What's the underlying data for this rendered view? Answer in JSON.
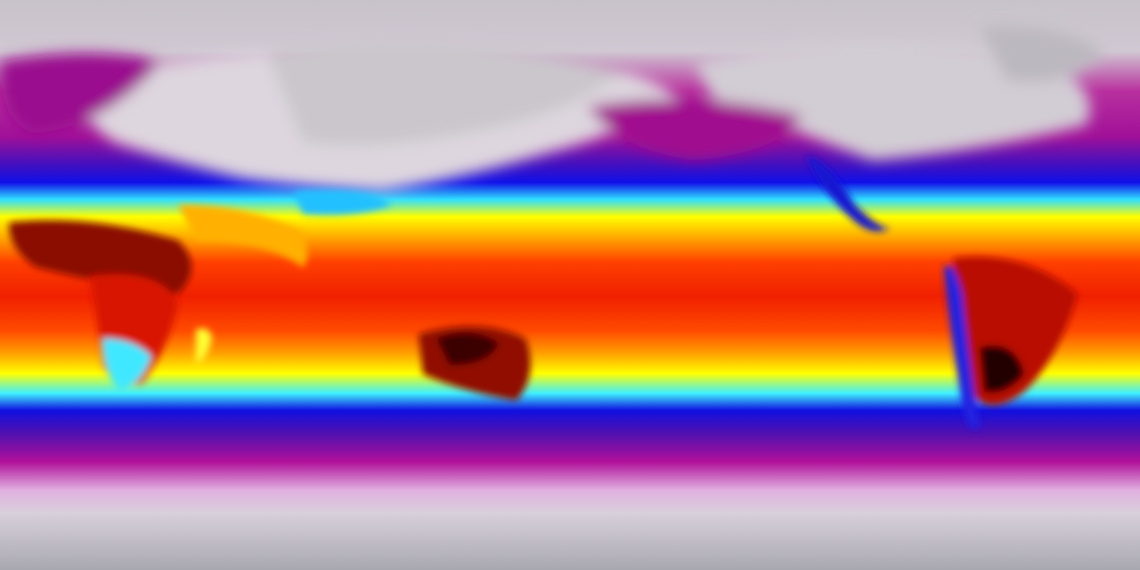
{
  "map": {
    "projection": "equirectangular",
    "variable": "temperature",
    "colors": {
      "polar": "#c4bec6",
      "cold_land": "#e6e0e8",
      "magenta": "#b0109a",
      "purple": "#5a10b0",
      "blue": "#1010e0",
      "cyan": "#30e0ff",
      "yellow": "#ffff00",
      "orange": "#ff8c00",
      "red": "#f02000",
      "dark_red": "#500000"
    }
  }
}
